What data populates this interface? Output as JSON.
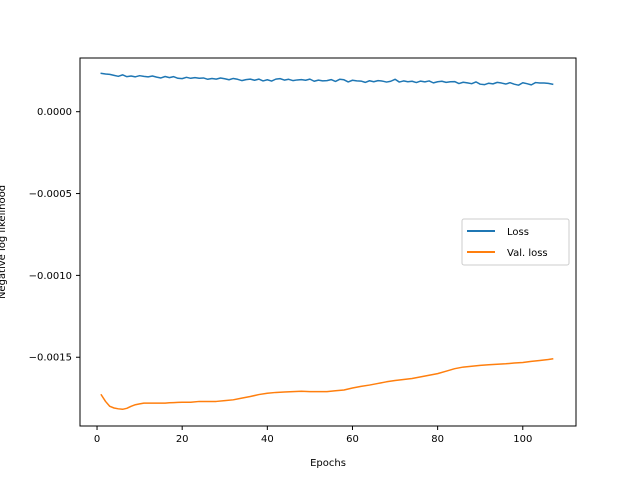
{
  "chart_data": {
    "type": "line",
    "title": "",
    "xlabel": "Epochs",
    "ylabel": "Negative log likelihood",
    "xlim": [
      -4,
      112.5
    ],
    "ylim": [
      -0.00192,
      0.000328
    ],
    "xticks": [
      0,
      20,
      40,
      60,
      80,
      100
    ],
    "yticks": [
      0.0,
      -0.0005,
      -0.001,
      -0.0015
    ],
    "xtick_labels": [
      "0",
      "20",
      "40",
      "60",
      "80",
      "100"
    ],
    "ytick_labels": [
      "0.0000",
      "−0.0005",
      "−0.0010",
      "−0.0015"
    ],
    "grid": false,
    "legend_position": "center-right",
    "series": [
      {
        "name": "Loss",
        "color": "#1f77b4",
        "x": [
          1,
          2,
          3,
          4,
          5,
          6,
          7,
          8,
          9,
          10,
          11,
          12,
          13,
          14,
          15,
          16,
          17,
          18,
          19,
          20,
          21,
          22,
          23,
          24,
          25,
          26,
          27,
          28,
          29,
          30,
          31,
          32,
          33,
          34,
          35,
          36,
          37,
          38,
          39,
          40,
          41,
          42,
          43,
          44,
          45,
          46,
          47,
          48,
          49,
          50,
          51,
          52,
          53,
          54,
          55,
          56,
          57,
          58,
          59,
          60,
          61,
          62,
          63,
          64,
          65,
          66,
          67,
          68,
          69,
          70,
          71,
          72,
          73,
          74,
          75,
          76,
          77,
          78,
          79,
          80,
          81,
          82,
          83,
          84,
          85,
          86,
          87,
          88,
          89,
          90,
          91,
          92,
          93,
          94,
          95,
          96,
          97,
          98,
          99,
          100,
          101,
          102,
          103,
          104,
          105,
          106,
          107
        ],
        "values": [
          0.000234,
          0.00023,
          0.000228,
          0.000222,
          0.000216,
          0.000225,
          0.000214,
          0.000218,
          0.000213,
          0.00022,
          0.000216,
          0.000213,
          0.000218,
          0.000211,
          0.000206,
          0.000215,
          0.000208,
          0.000214,
          0.000204,
          0.000202,
          0.00021,
          0.000204,
          0.000208,
          0.000204,
          0.000206,
          0.000198,
          0.000203,
          0.000199,
          0.000206,
          0.000201,
          0.000195,
          0.000203,
          0.000198,
          0.00019,
          0.000196,
          0.000199,
          0.000192,
          0.000199,
          0.000188,
          0.000195,
          0.000187,
          0.000199,
          0.000202,
          0.000193,
          0.000198,
          0.00019,
          0.000194,
          0.000196,
          0.000192,
          0.000199,
          0.000186,
          0.000193,
          0.000188,
          0.00019,
          0.000196,
          0.000185,
          0.000198,
          0.000195,
          0.000182,
          0.000192,
          0.000188,
          0.000187,
          0.000179,
          0.000189,
          0.000183,
          0.00019,
          0.000187,
          0.000181,
          0.000186,
          0.000198,
          0.000181,
          0.000188,
          0.000183,
          0.000186,
          0.000178,
          0.000187,
          0.000182,
          0.000188,
          0.000176,
          0.000183,
          0.000186,
          0.000179,
          0.000183,
          0.000184,
          0.000172,
          0.00018,
          0.000176,
          0.000171,
          0.000182,
          0.000168,
          0.000165,
          0.000174,
          0.00017,
          0.000179,
          0.000175,
          0.000169,
          0.000177,
          0.000168,
          0.000162,
          0.000177,
          0.000171,
          0.000164,
          0.000178,
          0.000175,
          0.000175,
          0.000173,
          0.000168
        ]
      },
      {
        "name": "Val. loss",
        "color": "#ff7f0e",
        "x": [
          1,
          2,
          3,
          4,
          5,
          6,
          7,
          8,
          9,
          10,
          11,
          12,
          13,
          14,
          15,
          16,
          17,
          18,
          19,
          20,
          22,
          24,
          26,
          28,
          30,
          32,
          34,
          36,
          38,
          40,
          42,
          44,
          46,
          48,
          50,
          52,
          54,
          56,
          58,
          60,
          62,
          64,
          66,
          68,
          70,
          72,
          74,
          76,
          78,
          80,
          82,
          84,
          86,
          88,
          90,
          92,
          94,
          96,
          98,
          100,
          102,
          104,
          106,
          107
        ],
        "values": [
          -0.00173,
          -0.00177,
          -0.0018,
          -0.00181,
          -0.001815,
          -0.001818,
          -0.001812,
          -0.0018,
          -0.00179,
          -0.001785,
          -0.00178,
          -0.00178,
          -0.00178,
          -0.00178,
          -0.00178,
          -0.00178,
          -0.001778,
          -0.001777,
          -0.001776,
          -0.001775,
          -0.001775,
          -0.00177,
          -0.00177,
          -0.00177,
          -0.001765,
          -0.00176,
          -0.00175,
          -0.00174,
          -0.001728,
          -0.00172,
          -0.001715,
          -0.001712,
          -0.00171,
          -0.001708,
          -0.00171,
          -0.00171,
          -0.00171,
          -0.001705,
          -0.0017,
          -0.001688,
          -0.001678,
          -0.00167,
          -0.00166,
          -0.00165,
          -0.001642,
          -0.001636,
          -0.00163,
          -0.00162,
          -0.00161,
          -0.0016,
          -0.001585,
          -0.00157,
          -0.00156,
          -0.001555,
          -0.00155,
          -0.001546,
          -0.001543,
          -0.00154,
          -0.001535,
          -0.001532,
          -0.001525,
          -0.00152,
          -0.001514,
          -0.00151
        ]
      }
    ]
  }
}
